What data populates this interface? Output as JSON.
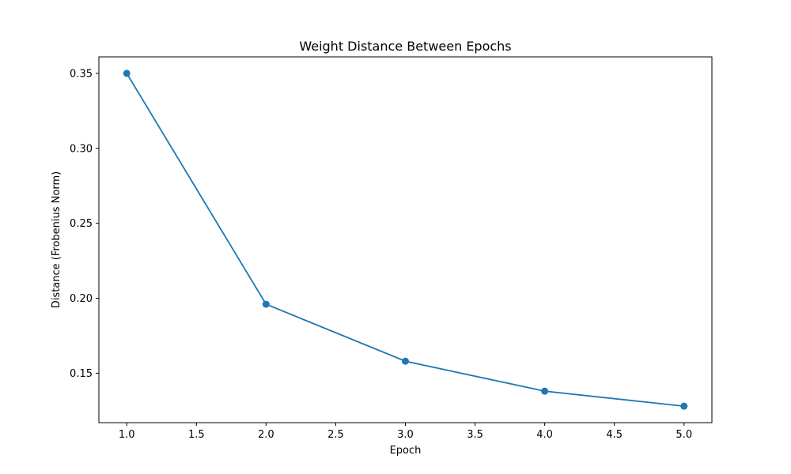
{
  "chart_data": {
    "type": "line",
    "title": "Weight Distance Between Epochs",
    "xlabel": "Epoch",
    "ylabel": "Distance (Frobenius Norm)",
    "x": [
      1,
      2,
      3,
      4,
      5
    ],
    "series": [
      {
        "values": [
          0.35,
          0.196,
          0.158,
          0.138,
          0.128
        ],
        "color": "#1f77b4",
        "marker": "circle"
      }
    ],
    "xlim": [
      0.8,
      5.2
    ],
    "ylim": [
      0.117,
      0.361
    ],
    "xticks": [
      1.0,
      1.5,
      2.0,
      2.5,
      3.0,
      3.5,
      4.0,
      4.5,
      5.0
    ],
    "xtick_labels": [
      "1.0",
      "1.5",
      "2.0",
      "2.5",
      "3.0",
      "3.5",
      "4.0",
      "4.5",
      "5.0"
    ],
    "yticks": [
      0.15,
      0.2,
      0.25,
      0.3,
      0.35
    ],
    "ytick_labels": [
      "0.15",
      "0.20",
      "0.25",
      "0.30",
      "0.35"
    ],
    "grid": false,
    "legend": "none"
  }
}
